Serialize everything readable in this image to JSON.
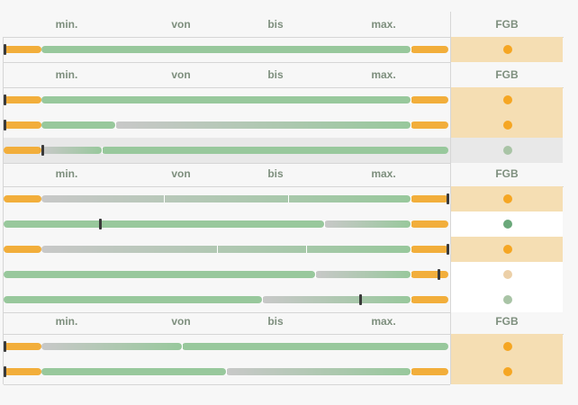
{
  "colors": {
    "orange": "#f2ae3b",
    "green": "#98c89c",
    "grey": "#c8c8c8",
    "fgb_highlight": "#f5deb3",
    "row_grey": "#e8e8e8",
    "marker": "#3a3a3a"
  },
  "header": {
    "min_label": "min.",
    "von_label": "von",
    "bis_label": "bis",
    "max_label": "max.",
    "fgb_label": "FGB"
  },
  "sections": [
    {
      "rows": [
        {
          "marker": 0.0,
          "status": "orange",
          "highlight": "orange",
          "segments": [
            [
              "o",
              0,
              0.085
            ],
            [
              "g",
              0.085,
              0.915
            ],
            [
              "o",
              0.915,
              1.0
            ]
          ],
          "ticks": [
            0.915
          ]
        }
      ]
    },
    {
      "rows": [
        {
          "marker": 0.0,
          "status": "orange",
          "highlight": "orange",
          "segments": [
            [
              "o",
              0,
              0.085
            ],
            [
              "g",
              0.085,
              0.915
            ],
            [
              "o",
              0.915,
              1.0
            ]
          ],
          "ticks": [
            0.915
          ]
        },
        {
          "marker": 0.0,
          "status": "orange",
          "highlight": "orange",
          "segments": [
            [
              "o",
              0,
              0.085
            ],
            [
              "g",
              0.085,
              0.25
            ],
            [
              "s",
              0.25,
              0.915
            ],
            [
              "o",
              0.915,
              1.0
            ]
          ],
          "ticks": [
            0.25,
            0.915
          ]
        },
        {
          "marker": 0.085,
          "status": "grey",
          "highlight": "grey",
          "segments": [
            [
              "o",
              0,
              0.085
            ],
            [
              "s",
              0.085,
              0.22
            ],
            [
              "g",
              0.22,
              1.0
            ]
          ],
          "ticks": [
            0.22
          ]
        }
      ]
    },
    {
      "rows": [
        {
          "marker": 1.0,
          "status": "orange",
          "highlight": "orange",
          "segments": [
            [
              "o",
              0,
              0.085
            ],
            [
              "s",
              0.085,
              0.915
            ],
            [
              "o",
              0.915,
              1.0
            ]
          ],
          "ticks": [
            0.36,
            0.64,
            0.915
          ]
        },
        {
          "marker": 0.215,
          "status": "green",
          "highlight": "white",
          "segments": [
            [
              "g",
              0,
              0.72
            ],
            [
              "s",
              0.72,
              0.915
            ],
            [
              "o",
              0.915,
              1.0
            ]
          ],
          "ticks": [
            0.72,
            0.915
          ]
        },
        {
          "marker": 1.0,
          "status": "orange",
          "highlight": "orange",
          "segments": [
            [
              "o",
              0,
              0.085
            ],
            [
              "s",
              0.085,
              0.915
            ],
            [
              "o",
              0.915,
              1.0
            ]
          ],
          "ticks": [
            0.48,
            0.68,
            0.915
          ]
        },
        {
          "marker": 0.975,
          "status": "lightorange",
          "highlight": "white",
          "segments": [
            [
              "g",
              0,
              0.7
            ],
            [
              "s",
              0.7,
              0.915
            ],
            [
              "o",
              0.915,
              1.0
            ]
          ],
          "ticks": [
            0.7,
            0.915
          ]
        },
        {
          "marker": 0.8,
          "status": "grey",
          "highlight": "white",
          "segments": [
            [
              "g",
              0,
              0.58
            ],
            [
              "s",
              0.58,
              0.915
            ],
            [
              "o",
              0.915,
              1.0
            ]
          ],
          "ticks": [
            0.58,
            0.915
          ]
        }
      ]
    },
    {
      "rows": [
        {
          "marker": 0.0,
          "status": "orange",
          "highlight": "orange",
          "segments": [
            [
              "o",
              0,
              0.085
            ],
            [
              "s",
              0.085,
              0.4
            ],
            [
              "g",
              0.4,
              1.0
            ]
          ],
          "ticks": [
            0.4
          ]
        },
        {
          "marker": 0.0,
          "status": "orange",
          "highlight": "orange",
          "segments": [
            [
              "o",
              0,
              0.085
            ],
            [
              "g",
              0.085,
              0.5
            ],
            [
              "s",
              0.5,
              0.915
            ],
            [
              "o",
              0.915,
              1.0
            ]
          ],
          "ticks": [
            0.5,
            0.915
          ]
        }
      ]
    }
  ]
}
